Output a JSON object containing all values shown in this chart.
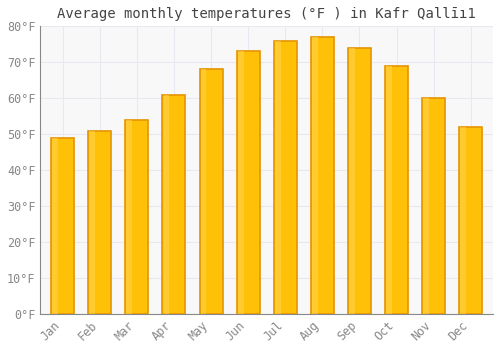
{
  "title": "Average monthly temperatures (°F ) in Kafr Qallīı1",
  "months": [
    "Jan",
    "Feb",
    "Mar",
    "Apr",
    "May",
    "Jun",
    "Jul",
    "Aug",
    "Sep",
    "Oct",
    "Nov",
    "Dec"
  ],
  "values": [
    49,
    51,
    54,
    61,
    68,
    73,
    76,
    77,
    74,
    69,
    60,
    52
  ],
  "bar_color_face": "#FFC107",
  "bar_color_edge": "#E59400",
  "ylim": [
    0,
    80
  ],
  "yticks": [
    0,
    10,
    20,
    30,
    40,
    50,
    60,
    70,
    80
  ],
  "ytick_labels": [
    "0°F",
    "10°F",
    "20°F",
    "30°F",
    "40°F",
    "50°F",
    "60°F",
    "70°F",
    "80°F"
  ],
  "background_color": "#ffffff",
  "plot_bg_color": "#f8f8f8",
  "grid_color": "#e8e8f0",
  "title_fontsize": 10,
  "tick_fontsize": 8.5,
  "title_color": "#444444",
  "tick_color": "#888888"
}
